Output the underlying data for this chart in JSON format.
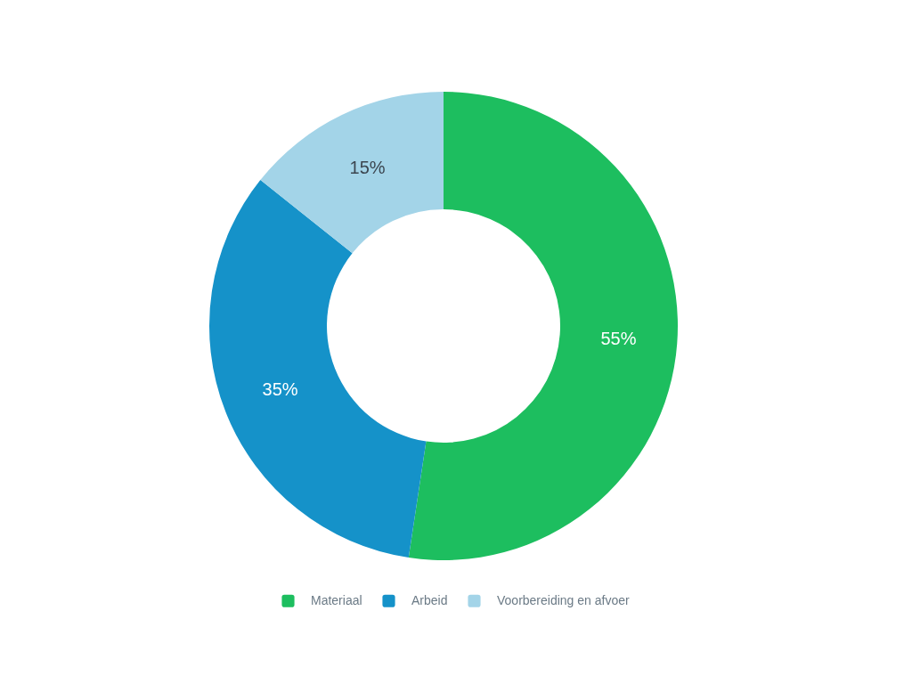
{
  "chart_data": {
    "type": "donut",
    "categories": [
      "Materiaal",
      "Arbeid",
      "Voorbereiding en afvoer"
    ],
    "values": [
      55,
      35,
      15
    ],
    "colors": [
      "#1dbe5f",
      "#1592c9",
      "#a3d4e8"
    ],
    "value_labels": [
      "55%",
      "35%",
      "15%"
    ],
    "legend": "bottom"
  }
}
